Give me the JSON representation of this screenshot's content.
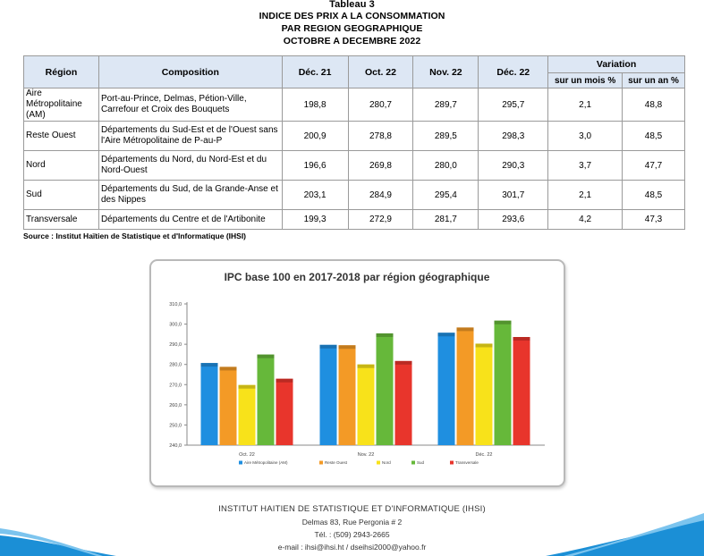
{
  "title": {
    "line0": "Tableau 3",
    "line1": "INDICE DES PRIX A LA CONSOMMATION",
    "line2": "PAR REGION GEOGRAPHIQUE",
    "line3": "OCTOBRE A DECEMBRE 2022"
  },
  "table": {
    "headers": {
      "region": "Région",
      "composition": "Composition",
      "dec21": "Déc. 21",
      "oct22": "Oct. 22",
      "nov22": "Nov. 22",
      "dec22": "Déc. 22",
      "variation": "Variation",
      "mois": "sur un mois %",
      "an": "sur un an %"
    },
    "rows": [
      {
        "region": "Aire Métropolitaine (AM)",
        "composition": "Port-au-Prince, Delmas, Pétion-Ville, Carrefour et Croix des Bouquets",
        "dec21": "198,8",
        "oct22": "280,7",
        "nov22": "289,7",
        "dec22": "295,7",
        "mois": "2,1",
        "an": "48,8"
      },
      {
        "region": "Reste Ouest",
        "composition": "Départements du Sud-Est et de l'Ouest sans l'Aire Métropolitaine de P-au-P",
        "dec21": "200,9",
        "oct22": "278,8",
        "nov22": "289,5",
        "dec22": "298,3",
        "mois": "3,0",
        "an": "48,5"
      },
      {
        "region": "Nord",
        "composition": "Départements du Nord, du Nord-Est et du Nord-Ouest",
        "dec21": "196,6",
        "oct22": "269,8",
        "nov22": "280,0",
        "dec22": "290,3",
        "mois": "3,7",
        "an": "47,7"
      },
      {
        "region": "Sud",
        "composition": "Départements du Sud, de la Grande-Anse et des Nippes",
        "dec21": "203,1",
        "oct22": "284,9",
        "nov22": "295,4",
        "dec22": "301,7",
        "mois": "2,1",
        "an": "48,5"
      },
      {
        "region": "Transversale",
        "composition": "Départements du Centre et de l'Artibonite",
        "dec21": "199,3",
        "oct22": "272,9",
        "nov22": "281,7",
        "dec22": "293,6",
        "mois": "4,2",
        "an": "47,3"
      }
    ]
  },
  "source": "Source : Institut Haïtien de Statistique et d'Informatique (IHSI)",
  "chart_data": {
    "type": "bar",
    "title": "IPC base 100 en 2017-2018  par région géographique",
    "categories": [
      "Oct. 22",
      "Nov. 22",
      "Déc. 22"
    ],
    "series": [
      {
        "name": "Aire Métropolitaine (AM)",
        "values": [
          280.7,
          289.7,
          295.7
        ],
        "color": "#1f8fe0"
      },
      {
        "name": "Reste Ouest",
        "values": [
          278.8,
          289.5,
          298.3
        ],
        "color": "#f39a26"
      },
      {
        "name": "Nord",
        "values": [
          269.8,
          280.0,
          290.3
        ],
        "color": "#f8e21a"
      },
      {
        "name": "Sud",
        "values": [
          284.9,
          295.4,
          301.7
        ],
        "color": "#66b83a"
      },
      {
        "name": "Transversale",
        "values": [
          272.9,
          281.7,
          293.6
        ],
        "color": "#e8352c"
      }
    ],
    "ylim": [
      240,
      310
    ],
    "yticks": [
      "240,0",
      "250,0",
      "260,0",
      "270,0",
      "280,0",
      "290,0",
      "300,0",
      "310,0"
    ],
    "grid": false,
    "legend": "bottom"
  },
  "footer": {
    "org": "INSTITUT HAITIEN DE STATISTIQUE ET D'INFORMATIQUE (IHSI)",
    "address": "Delmas 83, Rue Pergonia # 2",
    "phone": "Tél. : (509) 2943-2665",
    "email": "e-mail : ihsi@ihsi.ht / dseihsi2000@yahoo.fr"
  },
  "colors": {
    "header_bg": "#dde7f4",
    "wave": "#1b8fd6"
  }
}
